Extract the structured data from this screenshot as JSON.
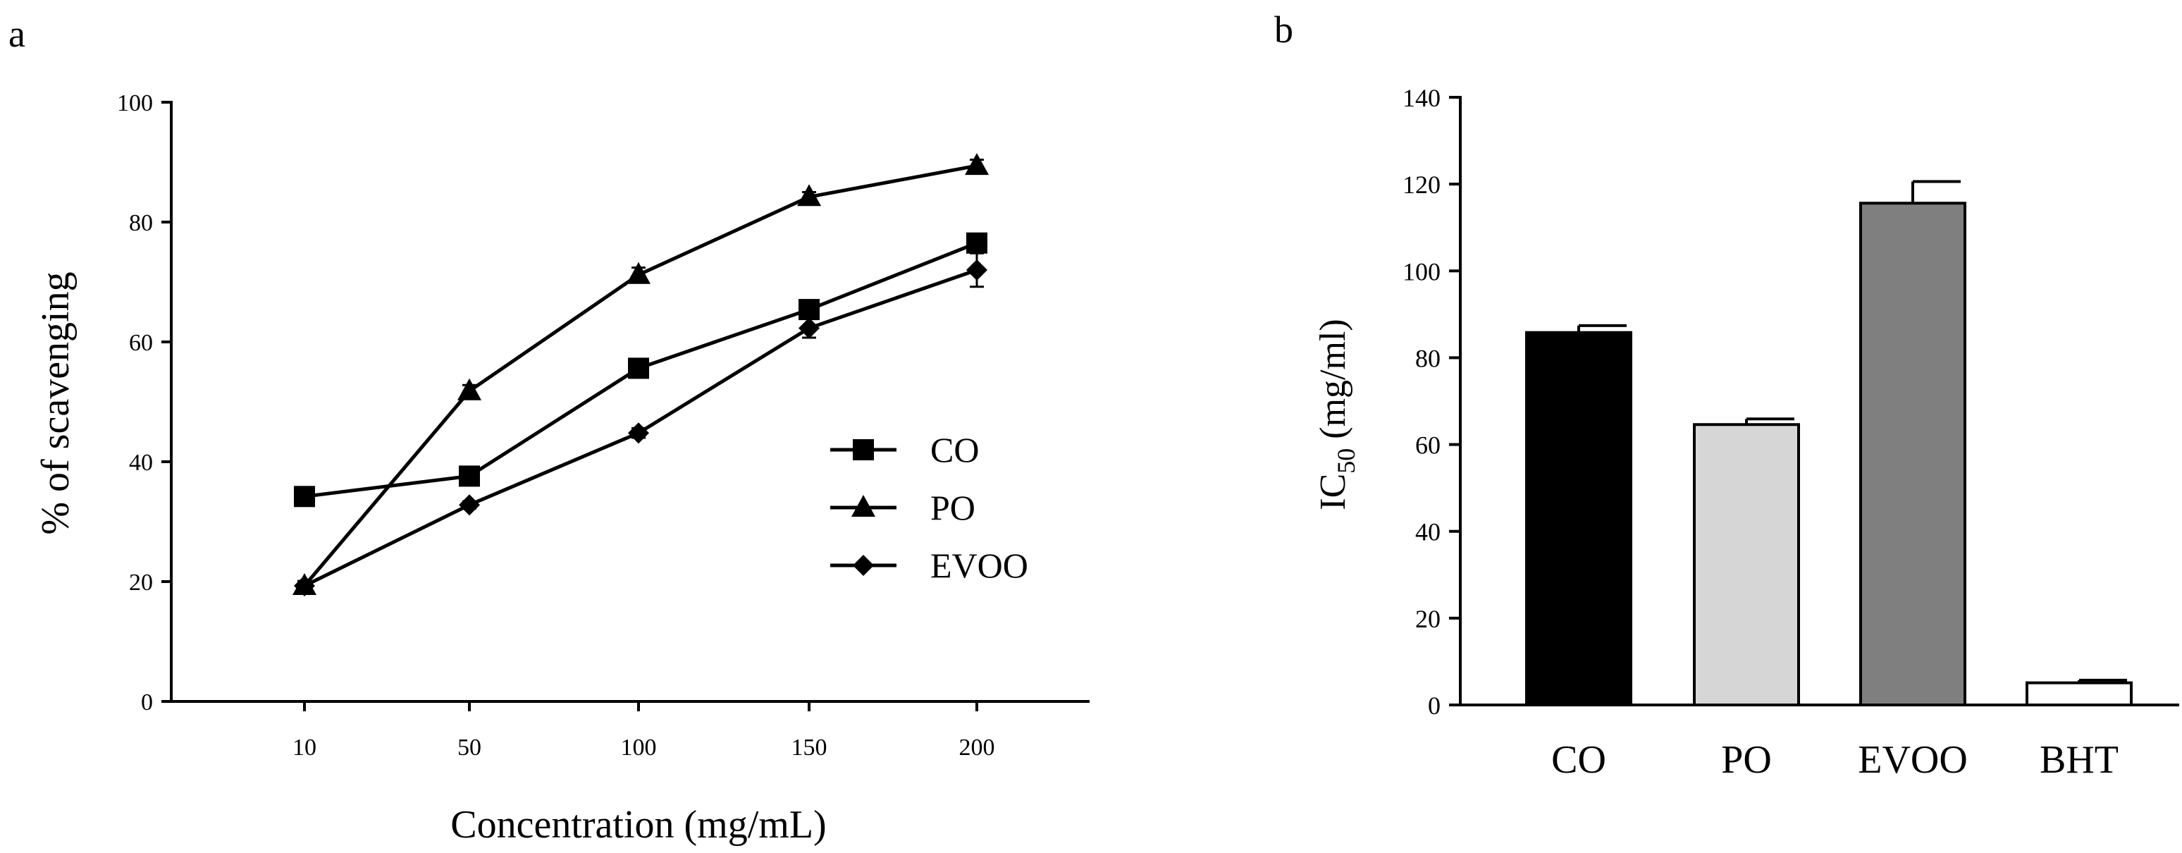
{
  "panels": {
    "a": "a",
    "b": "b"
  },
  "chart_data": [
    {
      "type": "line",
      "panel": "a",
      "title": "",
      "xlabel": "Concentration (mg/mL)",
      "ylabel": "% of scavenging",
      "x": [
        "10",
        "50",
        "100",
        "150",
        "200"
      ],
      "ylim": [
        0,
        100
      ],
      "yticks": [
        0,
        20,
        40,
        60,
        80,
        100
      ],
      "grid": false,
      "legend_position": "center-right",
      "series": [
        {
          "name": "CO",
          "marker": "square",
          "values": [
            34.2,
            37.6,
            55.6,
            65.4,
            76.5
          ],
          "errors": [
            0.6,
            0.8,
            1.0,
            1.2,
            1.2
          ]
        },
        {
          "name": "PO",
          "marker": "triangle",
          "values": [
            19.3,
            51.8,
            71.2,
            84.2,
            89.4
          ],
          "errors": [
            0.6,
            1.0,
            1.2,
            0.8,
            1.0
          ]
        },
        {
          "name": "EVOO",
          "marker": "diamond",
          "values": [
            19.3,
            32.8,
            44.8,
            62.3,
            72.0
          ],
          "errors": [
            0.8,
            0.6,
            0.8,
            1.6,
            2.8
          ]
        }
      ]
    },
    {
      "type": "bar",
      "panel": "b",
      "title": "",
      "xlabel": "",
      "ylabel": {
        "main": "IC",
        "sub": "50",
        "rest": " (mg/ml)"
      },
      "categories": [
        "CO",
        "PO",
        "EVOO",
        "BHT"
      ],
      "values": [
        85.8,
        64.6,
        115.6,
        5.1
      ],
      "errors": [
        1.6,
        1.3,
        5.0,
        0.6
      ],
      "bar_colors": [
        "#000000",
        "#d6d6d6",
        "#7f7f7f",
        "#ffffff"
      ],
      "ylim": [
        0,
        140
      ],
      "yticks": [
        0,
        20,
        40,
        60,
        80,
        100,
        120,
        140
      ],
      "grid": false
    }
  ]
}
